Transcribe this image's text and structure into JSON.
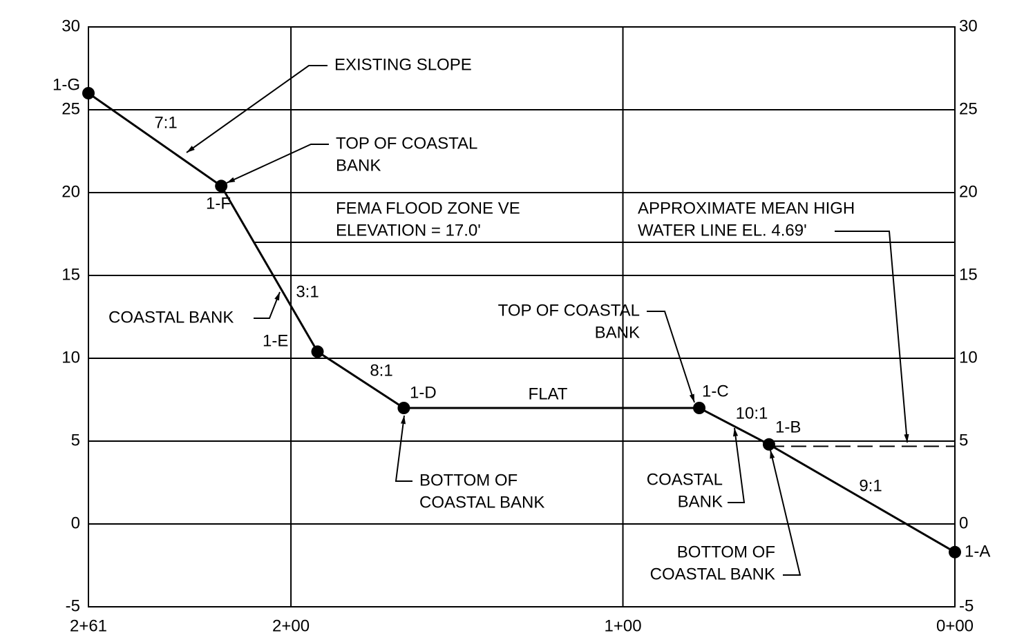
{
  "chart_data": {
    "type": "line",
    "x": [
      261,
      221,
      192,
      166,
      77,
      56,
      0
    ],
    "series": [
      {
        "color": "#000000",
        "values": [
          26.0,
          20.4,
          10.4,
          7.0,
          7.0,
          4.8,
          -1.7
        ]
      }
    ],
    "point_labels": [
      "1-G",
      "1-F",
      "1-E",
      "1-D",
      "1-C",
      "1-B",
      "1-A"
    ],
    "xlim": [
      261,
      0
    ],
    "xticks": [
      {
        "value": 261,
        "label": "2+61"
      },
      {
        "value": 200,
        "label": "2+00"
      },
      {
        "value": 100,
        "label": "1+00"
      },
      {
        "value": 0,
        "label": "0+00"
      }
    ],
    "ylim": [
      -5,
      30
    ],
    "yticks": [
      -5,
      0,
      5,
      10,
      15,
      20,
      25,
      30
    ],
    "grid": true,
    "reference_lines": [
      {
        "y": 17.0,
        "x": [
          211,
          0
        ],
        "dashed": false
      },
      {
        "y": 4.69,
        "x": [
          56,
          0
        ],
        "dashed": true
      }
    ],
    "slope_labels": [
      "7:1",
      "3:1",
      "8:1",
      "FLAT",
      "10:1",
      "9:1"
    ],
    "annotations": [
      [
        "EXISTING SLOPE"
      ],
      [
        "TOP OF  COASTAL",
        "BANK"
      ],
      [
        "FEMA FLOOD ZONE VE",
        "ELEVATION = 17.0'"
      ],
      [
        "APPROXIMATE MEAN HIGH",
        "WATER LINE EL. 4.69'"
      ],
      [
        "COASTAL BANK"
      ],
      [
        "TOP OF  COASTAL",
        "BANK"
      ],
      [
        "BOTTOM OF",
        "COASTAL BANK"
      ],
      [
        "COASTAL",
        "BANK"
      ],
      [
        "BOTTOM OF",
        "COASTAL BANK"
      ]
    ]
  }
}
